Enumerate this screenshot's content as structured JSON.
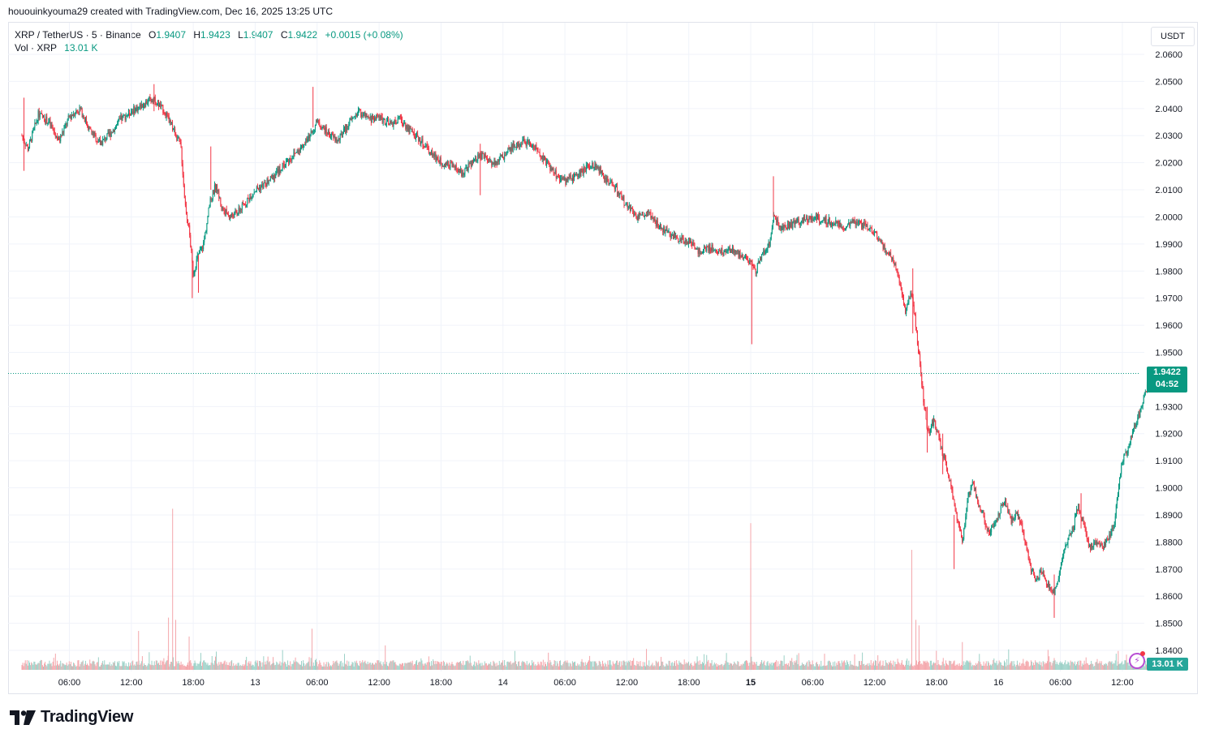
{
  "header": {
    "created_by": "hououinkyouma29 created with TradingView.com, Dec 16, 2025 13:25 UTC"
  },
  "legend": {
    "symbol": "XRP / TetherUS · 5 · Binance",
    "o_label": "O",
    "o_value": "1.9407",
    "h_label": "H",
    "h_value": "1.9423",
    "l_label": "L",
    "l_value": "1.9407",
    "c_label": "C",
    "c_value": "1.9422",
    "change": "+0.0015 (+0.08%)",
    "vol_label": "Vol · XRP",
    "vol_value": "13.01 K"
  },
  "currency": "USDT",
  "last_price": {
    "price": "1.9422",
    "countdown": "04:52"
  },
  "volume_tag": "13.01 K",
  "brand": "TradingView",
  "colors": {
    "up": "#089981",
    "down": "#f23645",
    "vol_up": "#9bd1c7",
    "vol_down": "#f4a6ab"
  },
  "chart_data": {
    "type": "candlestick",
    "symbol": "XRP / TetherUS",
    "interval": "5",
    "exchange": "Binance",
    "y_ticks": [
      "2.0600",
      "2.0500",
      "2.0400",
      "2.0300",
      "2.0200",
      "2.0100",
      "2.0000",
      "1.9900",
      "1.9800",
      "1.9700",
      "1.9600",
      "1.9500",
      "1.9300",
      "1.9200",
      "1.9100",
      "1.9000",
      "1.8900",
      "1.8800",
      "1.8700",
      "1.8600",
      "1.8500",
      "1.8400"
    ],
    "x_ticks": [
      {
        "label": "06:00",
        "t": 6,
        "bold": false
      },
      {
        "label": "12:00",
        "t": 12,
        "bold": false
      },
      {
        "label": "18:00",
        "t": 18,
        "bold": false
      },
      {
        "label": "13",
        "t": 24,
        "bold": false
      },
      {
        "label": "06:00",
        "t": 30,
        "bold": false
      },
      {
        "label": "12:00",
        "t": 36,
        "bold": false
      },
      {
        "label": "18:00",
        "t": 42,
        "bold": false
      },
      {
        "label": "14",
        "t": 48,
        "bold": false
      },
      {
        "label": "06:00",
        "t": 54,
        "bold": false
      },
      {
        "label": "12:00",
        "t": 60,
        "bold": false
      },
      {
        "label": "18:00",
        "t": 66,
        "bold": false
      },
      {
        "label": "15",
        "t": 72,
        "bold": true
      },
      {
        "label": "06:00",
        "t": 78,
        "bold": false
      },
      {
        "label": "12:00",
        "t": 84,
        "bold": false
      },
      {
        "label": "18:00",
        "t": 90,
        "bold": false
      },
      {
        "label": "16",
        "t": 96,
        "bold": false
      },
      {
        "label": "06:00",
        "t": 102,
        "bold": false
      },
      {
        "label": "12:00",
        "t": 108,
        "bold": false
      }
    ],
    "price_path": [
      [
        1.4,
        2.03
      ],
      [
        2.0,
        2.025
      ],
      [
        3.0,
        2.038
      ],
      [
        4.0,
        2.035
      ],
      [
        5.0,
        2.028
      ],
      [
        6.0,
        2.037
      ],
      [
        7.0,
        2.04
      ],
      [
        8.0,
        2.032
      ],
      [
        9.0,
        2.027
      ],
      [
        10.0,
        2.031
      ],
      [
        11.0,
        2.036
      ],
      [
        12.0,
        2.039
      ],
      [
        13.0,
        2.041
      ],
      [
        14.0,
        2.044
      ],
      [
        15.0,
        2.04
      ],
      [
        16.0,
        2.033
      ],
      [
        16.8,
        2.026
      ],
      [
        17.2,
        2.005
      ],
      [
        17.6,
        1.995
      ],
      [
        18.0,
        1.979
      ],
      [
        18.4,
        1.985
      ],
      [
        19.0,
        1.99
      ],
      [
        19.6,
        2.005
      ],
      [
        20.2,
        2.012
      ],
      [
        20.8,
        2.003
      ],
      [
        21.6,
        2.0
      ],
      [
        22.4,
        2.002
      ],
      [
        23.2,
        2.006
      ],
      [
        24.0,
        2.01
      ],
      [
        25.0,
        2.012
      ],
      [
        26.0,
        2.016
      ],
      [
        27.0,
        2.02
      ],
      [
        28.0,
        2.024
      ],
      [
        29.0,
        2.028
      ],
      [
        30.0,
        2.035
      ],
      [
        31.0,
        2.031
      ],
      [
        32.0,
        2.028
      ],
      [
        33.0,
        2.034
      ],
      [
        34.0,
        2.039
      ],
      [
        35.0,
        2.036
      ],
      [
        36.0,
        2.037
      ],
      [
        37.0,
        2.034
      ],
      [
        38.0,
        2.036
      ],
      [
        39.0,
        2.032
      ],
      [
        40.0,
        2.028
      ],
      [
        41.0,
        2.024
      ],
      [
        42.0,
        2.02
      ],
      [
        43.0,
        2.019
      ],
      [
        44.0,
        2.016
      ],
      [
        45.0,
        2.02
      ],
      [
        46.0,
        2.023
      ],
      [
        47.0,
        2.02
      ],
      [
        48.0,
        2.022
      ],
      [
        49.0,
        2.026
      ],
      [
        50.0,
        2.028
      ],
      [
        51.0,
        2.026
      ],
      [
        52.0,
        2.021
      ],
      [
        53.0,
        2.016
      ],
      [
        54.0,
        2.013
      ],
      [
        55.0,
        2.015
      ],
      [
        56.0,
        2.018
      ],
      [
        57.0,
        2.019
      ],
      [
        58.0,
        2.014
      ],
      [
        59.0,
        2.01
      ],
      [
        60.0,
        2.004
      ],
      [
        61.0,
        2.0
      ],
      [
        62.0,
        2.002
      ],
      [
        63.0,
        1.997
      ],
      [
        64.0,
        1.994
      ],
      [
        65.0,
        1.992
      ],
      [
        66.0,
        1.991
      ],
      [
        67.0,
        1.987
      ],
      [
        68.0,
        1.989
      ],
      [
        69.0,
        1.987
      ],
      [
        70.0,
        1.988
      ],
      [
        71.0,
        1.986
      ],
      [
        72.0,
        1.983
      ],
      [
        72.5,
        1.98
      ],
      [
        73.0,
        1.985
      ],
      [
        73.8,
        1.99
      ],
      [
        74.2,
        2.0
      ],
      [
        75.0,
        1.996
      ],
      [
        76.0,
        1.997
      ],
      [
        77.0,
        1.999
      ],
      [
        78.0,
        2.0
      ],
      [
        79.0,
        1.999
      ],
      [
        80.0,
        1.998
      ],
      [
        81.0,
        1.996
      ],
      [
        82.0,
        1.998
      ],
      [
        83.0,
        1.997
      ],
      [
        84.0,
        1.994
      ],
      [
        85.0,
        1.988
      ],
      [
        85.8,
        1.984
      ],
      [
        86.5,
        1.975
      ],
      [
        87.0,
        1.965
      ],
      [
        87.6,
        1.972
      ],
      [
        88.0,
        1.96
      ],
      [
        88.4,
        1.945
      ],
      [
        88.8,
        1.93
      ],
      [
        89.2,
        1.92
      ],
      [
        89.8,
        1.925
      ],
      [
        90.4,
        1.915
      ],
      [
        91.0,
        1.908
      ],
      [
        91.5,
        1.898
      ],
      [
        92.0,
        1.888
      ],
      [
        92.5,
        1.88
      ],
      [
        93.0,
        1.895
      ],
      [
        93.5,
        1.903
      ],
      [
        94.0,
        1.895
      ],
      [
        94.5,
        1.89
      ],
      [
        95.0,
        1.883
      ],
      [
        95.5,
        1.885
      ],
      [
        96.0,
        1.89
      ],
      [
        96.6,
        1.896
      ],
      [
        97.2,
        1.888
      ],
      [
        97.8,
        1.891
      ],
      [
        98.4,
        1.884
      ],
      [
        99.0,
        1.872
      ],
      [
        99.6,
        1.866
      ],
      [
        100.2,
        1.87
      ],
      [
        100.8,
        1.864
      ],
      [
        101.4,
        1.861
      ],
      [
        102.0,
        1.87
      ],
      [
        102.6,
        1.88
      ],
      [
        103.2,
        1.885
      ],
      [
        103.7,
        1.893
      ],
      [
        104.2,
        1.888
      ],
      [
        104.8,
        1.878
      ],
      [
        105.4,
        1.879
      ],
      [
        106.0,
        1.878
      ],
      [
        106.6,
        1.881
      ],
      [
        107.2,
        1.886
      ],
      [
        107.6,
        1.9
      ],
      [
        108.0,
        1.91
      ],
      [
        108.5,
        1.914
      ],
      [
        109.0,
        1.92
      ],
      [
        109.5,
        1.926
      ],
      [
        110.0,
        1.932
      ],
      [
        110.4,
        1.938
      ],
      [
        110.8,
        1.9422
      ]
    ],
    "spikes": [
      [
        1.6,
        2.044,
        2.017
      ],
      [
        14.2,
        2.049,
        2.039
      ],
      [
        17.9,
        1.985,
        1.97
      ],
      [
        18.5,
        1.986,
        1.972
      ],
      [
        19.7,
        2.026,
        2.01
      ],
      [
        29.6,
        2.048,
        2.033
      ],
      [
        45.8,
        2.027,
        2.008
      ],
      [
        72.1,
        1.984,
        1.953
      ],
      [
        74.2,
        2.015,
        2.0
      ],
      [
        87.7,
        1.981,
        1.957
      ],
      [
        89.1,
        1.93,
        1.913
      ],
      [
        90.6,
        1.92,
        1.905
      ],
      [
        91.7,
        1.89,
        1.87
      ],
      [
        101.4,
        1.868,
        1.852
      ],
      [
        104.0,
        1.898,
        1.885
      ]
    ],
    "volume_spikes": [
      [
        12.7,
        0.35
      ],
      [
        15.6,
        0.47
      ],
      [
        16.0,
        1.45
      ],
      [
        16.3,
        0.45
      ],
      [
        17.6,
        0.3
      ],
      [
        29.5,
        0.37
      ],
      [
        36.6,
        0.22
      ],
      [
        72.0,
        1.32
      ],
      [
        87.6,
        1.08
      ],
      [
        88.0,
        0.45
      ],
      [
        88.3,
        0.4
      ],
      [
        92.5,
        0.25
      ],
      [
        100.8,
        0.18
      ],
      [
        107.6,
        0.17
      ]
    ]
  }
}
